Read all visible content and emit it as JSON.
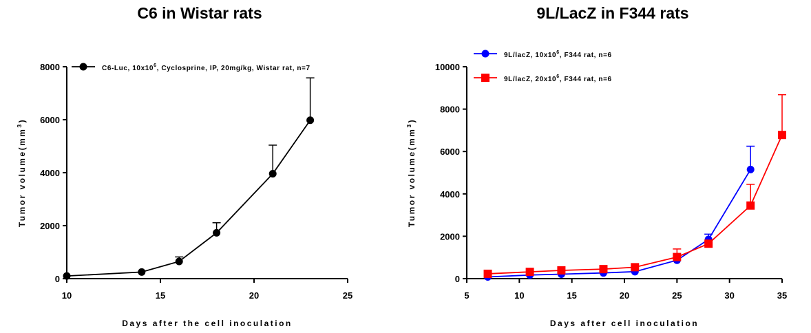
{
  "chart_data": [
    {
      "type": "line",
      "title": "C6 in Wistar rats",
      "xlabel": "Days after the cell inoculation",
      "ylabel_parts": [
        "Tumor volume(mm",
        "3",
        ")"
      ],
      "xlim": [
        10,
        25
      ],
      "ylim": [
        0,
        8000
      ],
      "xticks": [
        10,
        15,
        20,
        25
      ],
      "yticks": [
        0,
        2000,
        4000,
        6000,
        8000
      ],
      "legend_position": "top",
      "series": [
        {
          "name_parts": [
            "C6-Luc, 10x10",
            "6",
            ", Cyclosprine, IP, 20mg/kg, Wistar rat, n=7"
          ],
          "color": "#000000",
          "marker": "circle",
          "x": [
            10,
            14,
            16,
            18,
            21,
            23
          ],
          "y": [
            100,
            250,
            650,
            1730,
            3960,
            5980
          ],
          "error": [
            0,
            0,
            170,
            380,
            1080,
            1600
          ]
        }
      ]
    },
    {
      "type": "line",
      "title": "9L/LacZ in F344 rats",
      "xlabel": "Days after cell inoculation",
      "ylabel_parts": [
        "Tumor volume(mm",
        "3",
        ")"
      ],
      "xlim": [
        5,
        35
      ],
      "ylim": [
        0,
        10000
      ],
      "xticks": [
        5,
        10,
        15,
        20,
        25,
        30,
        35
      ],
      "yticks": [
        0,
        2000,
        4000,
        6000,
        8000,
        10000
      ],
      "legend_position": "top-left",
      "series": [
        {
          "name_parts": [
            "9L/lacZ, 10x10",
            "6",
            ", F344 rat, n=6"
          ],
          "color": "#0000ff",
          "marker": "circle",
          "x": [
            7,
            11,
            14,
            18,
            21,
            25,
            28,
            32
          ],
          "y": [
            80,
            170,
            210,
            270,
            330,
            870,
            1850,
            5150
          ],
          "error": [
            0,
            0,
            0,
            0,
            0,
            0,
            250,
            1100
          ]
        },
        {
          "name_parts": [
            "9L/lacZ, 20x10",
            "6",
            ", F344 rat, n=6"
          ],
          "color": "#ff0000",
          "marker": "square",
          "x": [
            7,
            11,
            14,
            18,
            21,
            25,
            28,
            32,
            35
          ],
          "y": [
            230,
            320,
            390,
            450,
            540,
            1020,
            1650,
            3450,
            6780
          ],
          "error": [
            0,
            0,
            0,
            0,
            0,
            380,
            0,
            1000,
            1900
          ]
        }
      ]
    }
  ]
}
